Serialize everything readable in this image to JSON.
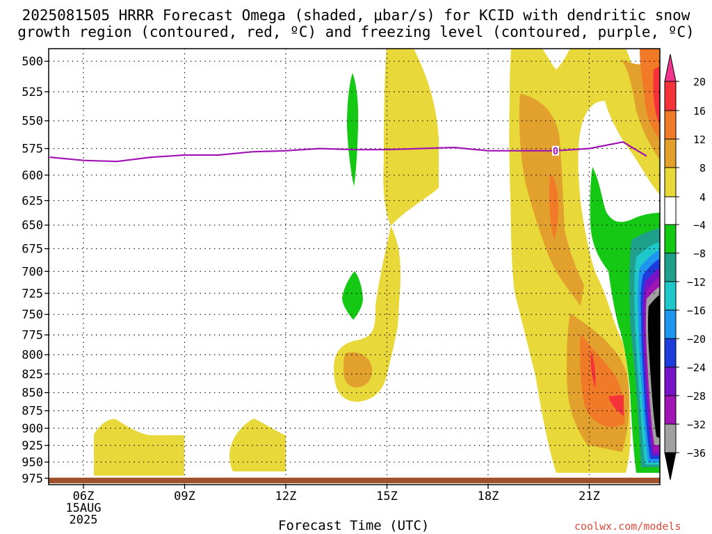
{
  "title": {
    "line1": "2025081505 HRRR Forecast Omega (shaded, μbar/s) for KCID with dendritic snow",
    "line2": "growth region (contoured, red, ºC) and freezing level (contoured, purple, ºC)"
  },
  "footer": {
    "xlabel": "Forecast Time (UTC)",
    "credit": "coolwx.com/models"
  },
  "chart_data": {
    "type": "heatmap",
    "x_ticks": [
      "06Z",
      "09Z",
      "12Z",
      "15Z",
      "18Z",
      "21Z"
    ],
    "date_label": [
      "15AUG",
      "2025"
    ],
    "y_ticks": [
      500,
      525,
      550,
      575,
      600,
      625,
      650,
      675,
      700,
      725,
      750,
      775,
      800,
      825,
      850,
      875,
      900,
      925,
      950,
      975
    ],
    "y_log": true,
    "grid": true,
    "colorbar": {
      "levels": [
        "20",
        "16",
        "12",
        "8",
        "4",
        "−4",
        "−8",
        "−12",
        "−16",
        "−20",
        "−24",
        "−28",
        "−32",
        "−36"
      ],
      "colors": [
        "#f0368c",
        "#f5323a",
        "#f07a28",
        "#e2a02c",
        "#e8d83a",
        "#ffffff",
        "#14c814",
        "#1ea08c",
        "#1ec8c8",
        "#1e96f0",
        "#1e3cdc",
        "#7814c8",
        "#a014b4",
        "#a0a0a0",
        "#000000"
      ]
    },
    "freezing_level": {
      "label": "0",
      "color": "#a014b4",
      "x_hours": [
        5,
        6,
        7,
        8,
        9,
        10,
        11,
        12,
        13,
        14,
        15,
        16,
        17,
        18,
        19,
        20,
        21,
        22,
        22.7
      ],
      "p_hpa": [
        583,
        586,
        587,
        583,
        581,
        581,
        578,
        577,
        575,
        576,
        576,
        575,
        574,
        577,
        577,
        577,
        575,
        569,
        582
      ]
    },
    "terrain_color": "#a0522d",
    "shading_color_keys": [
      "yellow",
      "light_orange",
      "orange",
      "red",
      "green",
      "teal",
      "cyan",
      "blue",
      "dark_blue",
      "violet",
      "magenta",
      "gray",
      "black"
    ]
  }
}
